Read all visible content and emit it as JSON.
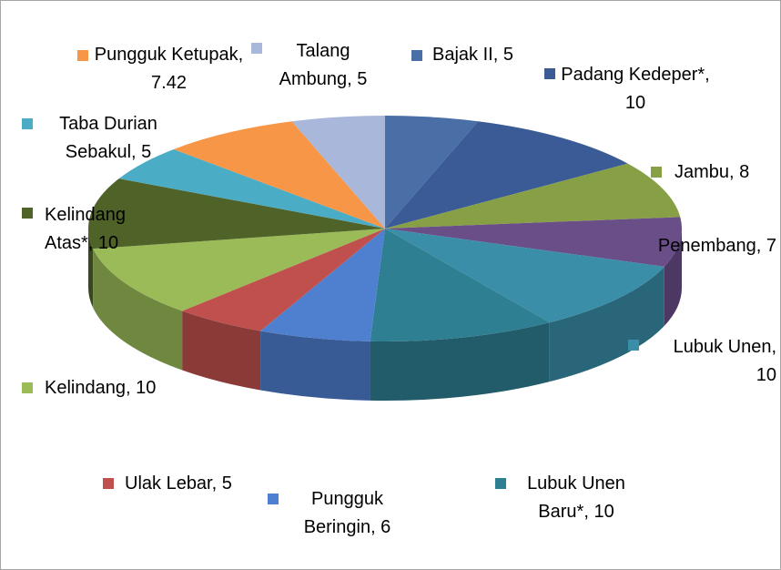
{
  "chart_data": {
    "type": "pie3d",
    "value_labels": [
      "Bajak II, 5",
      "Padang Kedeper*, 10",
      "Jambu, 8",
      "Penembang, 7",
      "Lubuk Unen, 10",
      "Lubuk Unen Baru*, 10",
      "Pungguk Beringin, 6",
      "Ulak Lebar, 5",
      "Kelindang, 10",
      "Kelindang Atas*, 10",
      "Taba Durian Sebakul, 5",
      "Pungguk Ketupak, 7.42",
      "Talang Ambung, 5"
    ],
    "values": [
      5,
      10,
      8,
      7,
      10,
      10,
      6,
      5,
      10,
      10,
      5,
      7.42,
      5
    ],
    "colors": [
      "#4a6ea6",
      "#3a5b96",
      "#87a046",
      "#6a4e88",
      "#3a8ea8",
      "#2f7f93",
      "#4f7fcf",
      "#c0504d",
      "#9bbb59",
      "#4f6228",
      "#4bacc6",
      "#f79646",
      "#a8b7da"
    ]
  }
}
